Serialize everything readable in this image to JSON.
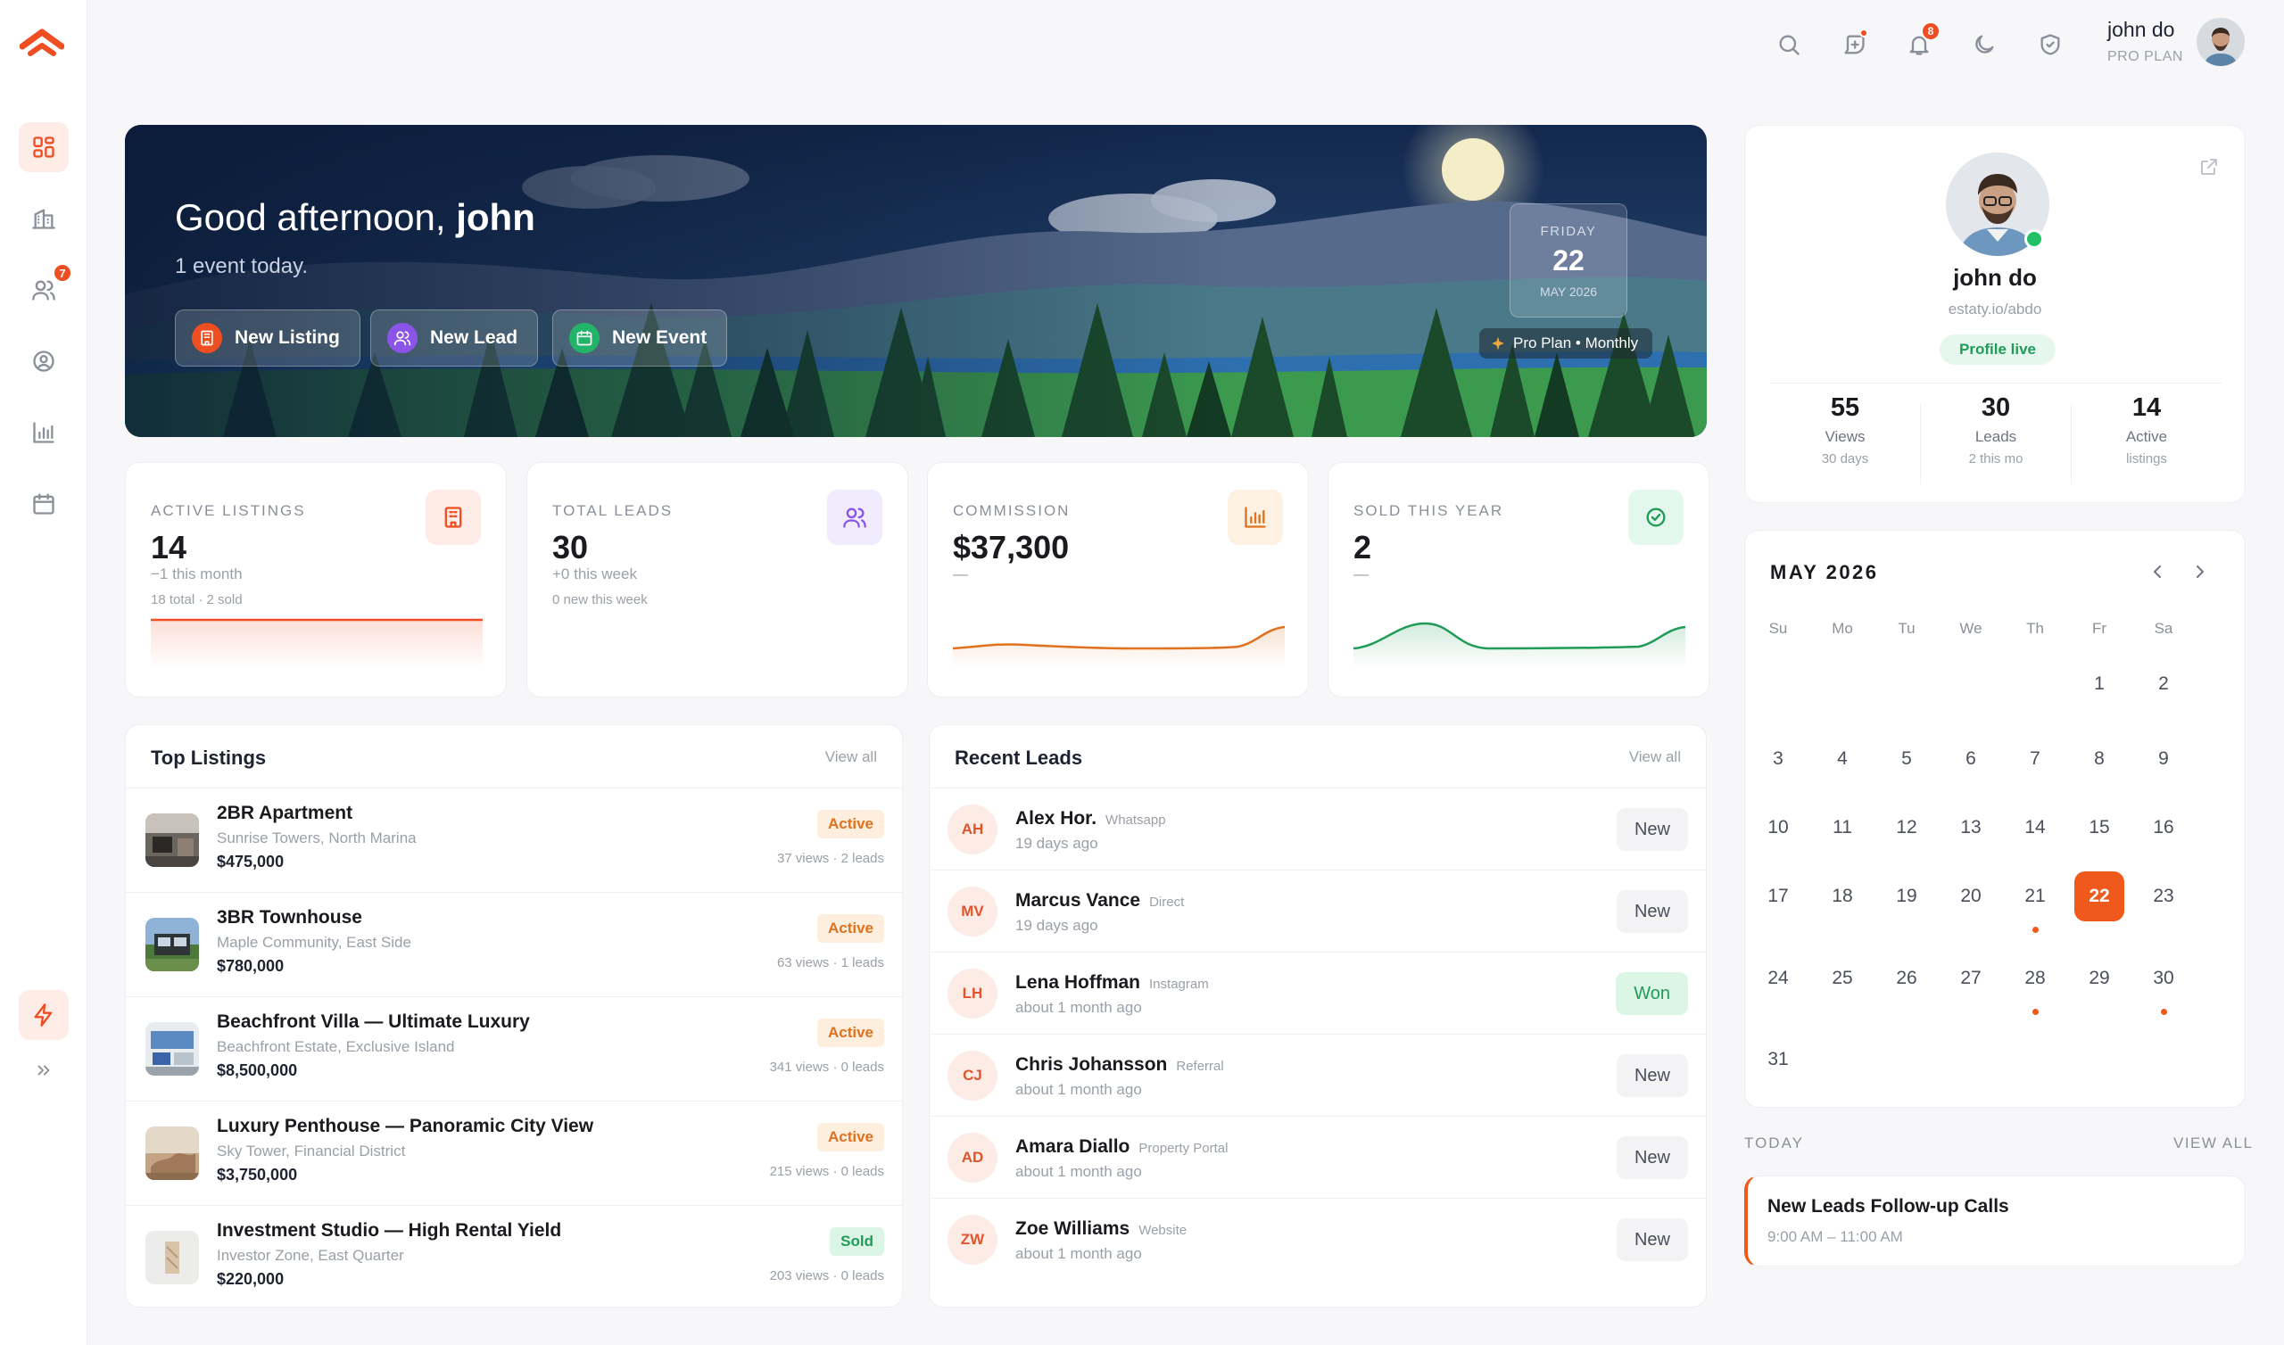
{
  "app": {
    "brand_color": "#ef4d22"
  },
  "sidebar": {
    "items": [
      {
        "name": "dashboard-icon",
        "active": true
      },
      {
        "name": "building-icon"
      },
      {
        "name": "users-icon",
        "badge": "7"
      },
      {
        "name": "user-circle-icon"
      },
      {
        "name": "chart-icon"
      },
      {
        "name": "calendar-icon"
      }
    ],
    "bottom": [
      {
        "name": "bolt-icon"
      },
      {
        "name": "chevrons-right-icon"
      }
    ]
  },
  "topbar": {
    "notification_count": "8",
    "user_name": "john do",
    "user_plan": "PRO PLAN"
  },
  "hero": {
    "greeting_prefix": "Good afternoon,",
    "greeting_name": "john",
    "subtitle": "1 event today.",
    "buttons": [
      {
        "label": "New Listing",
        "color": "#ef4d22"
      },
      {
        "label": "New Lead",
        "color": "#8b54e8"
      },
      {
        "label": "New Event",
        "color": "#22b569"
      }
    ],
    "date": {
      "weekday": "FRIDAY",
      "day": "22",
      "month_year": "MAY 2026"
    },
    "plan_badge": "Pro Plan • Monthly"
  },
  "stats": [
    {
      "label": "ACTIVE LISTINGS",
      "value": "14",
      "sub1": "−1 this month",
      "sub2": "18 total · 2 sold",
      "icon": "building-icon",
      "color": "#ef4d22",
      "tint": "#feece6"
    },
    {
      "label": "TOTAL LEADS",
      "value": "30",
      "sub1": "+0 this week",
      "sub2": "0 new this week",
      "icon": "users-icon",
      "color": "#8b54e8",
      "tint": "#f1ecfd"
    },
    {
      "label": "COMMISSION",
      "value": "$37,300",
      "sub1": "—",
      "sub2": "",
      "icon": "chart-icon",
      "color": "#e0721f",
      "tint": "#fdf1e4"
    },
    {
      "label": "SOLD THIS YEAR",
      "value": "2",
      "sub1": "—",
      "sub2": "",
      "icon": "check-circle-icon",
      "color": "#1f9c57",
      "tint": "#e4f7ec"
    }
  ],
  "top_listings": {
    "title": "Top Listings",
    "view_all": "View all",
    "items": [
      {
        "title": "2BR Apartment",
        "location": "Sunrise Towers, North Marina",
        "price": "$475,000",
        "status": "Active",
        "meta": "37 views · 2 leads"
      },
      {
        "title": "3BR Townhouse",
        "location": "Maple Community, East Side",
        "price": "$780,000",
        "status": "Active",
        "meta": "63 views · 1 leads"
      },
      {
        "title": "Beachfront Villa — Ultimate Luxury",
        "location": "Beachfront Estate, Exclusive Island",
        "price": "$8,500,000",
        "status": "Active",
        "meta": "341 views · 0 leads"
      },
      {
        "title": "Luxury Penthouse — Panoramic City View",
        "location": "Sky Tower, Financial District",
        "price": "$3,750,000",
        "status": "Active",
        "meta": "215 views · 0 leads"
      },
      {
        "title": "Investment Studio — High Rental Yield",
        "location": "Investor Zone, East Quarter",
        "price": "$220,000",
        "status": "Sold",
        "meta": "203 views · 0 leads"
      }
    ]
  },
  "recent_leads": {
    "title": "Recent Leads",
    "view_all": "View all",
    "items": [
      {
        "initials": "AH",
        "name": "Alex Hor.",
        "source": "Whatsapp",
        "time": "19 days ago",
        "status": "New"
      },
      {
        "initials": "MV",
        "name": "Marcus Vance",
        "source": "Direct",
        "time": "19 days ago",
        "status": "New"
      },
      {
        "initials": "LH",
        "name": "Lena Hoffman",
        "source": "Instagram",
        "time": "about 1 month ago",
        "status": "Won"
      },
      {
        "initials": "CJ",
        "name": "Chris Johansson",
        "source": "Referral",
        "time": "about 1 month ago",
        "status": "New"
      },
      {
        "initials": "AD",
        "name": "Amara Diallo",
        "source": "Property Portal",
        "time": "about 1 month ago",
        "status": "New"
      },
      {
        "initials": "ZW",
        "name": "Zoe Williams",
        "source": "Website",
        "time": "about 1 month ago",
        "status": "New"
      }
    ]
  },
  "profile": {
    "name": "john do",
    "url": "estaty.io/abdo",
    "status": "Profile live",
    "stats": [
      {
        "value": "55",
        "label": "Views",
        "sub": "30 days"
      },
      {
        "value": "30",
        "label": "Leads",
        "sub": "2 this mo"
      },
      {
        "value": "14",
        "label": "Active",
        "sub": "listings"
      }
    ]
  },
  "calendar": {
    "month": "MAY 2026",
    "weekdays": [
      "Su",
      "Mo",
      "Tu",
      "We",
      "Th",
      "Fr",
      "Sa"
    ],
    "first_weekday": 5,
    "days_in_month": 31,
    "selected": 22,
    "event_days": [
      21,
      28,
      30
    ]
  },
  "today": {
    "label": "TODAY",
    "view_all": "VIEW ALL",
    "event_title": "New Leads Follow-up Calls",
    "event_time": "9:00 AM – 11:00 AM"
  }
}
